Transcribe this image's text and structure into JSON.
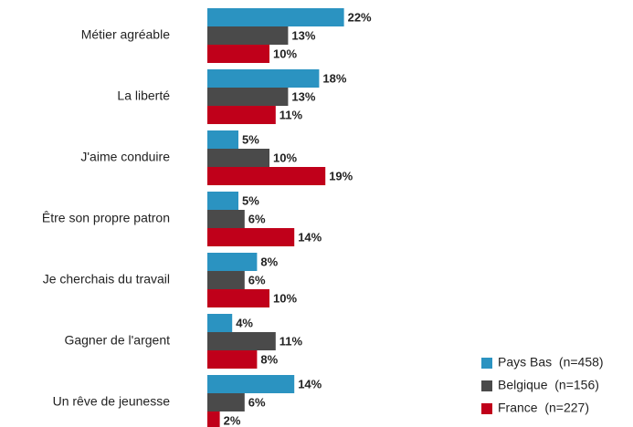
{
  "chart_data": {
    "type": "hbar",
    "categories": [
      "Métier agréable",
      "La liberté",
      "J'aime conduire",
      "Être son propre patron",
      "Je cherchais du travail",
      "Gagner de l'argent",
      "Un rêve de jeunesse"
    ],
    "series": [
      {
        "name": "Pays Bas  (n=458)",
        "color": "#2b93c1",
        "values": [
          22,
          18,
          5,
          5,
          8,
          4,
          14
        ],
        "value_labels": [
          "22%",
          "18%",
          "5%",
          "5%",
          "8%",
          "4%",
          "14%"
        ]
      },
      {
        "name": "Belgique  (n=156)",
        "color": "#4a4a4a",
        "values": [
          13,
          13,
          10,
          6,
          6,
          11,
          6
        ],
        "value_labels": [
          "13%",
          "13%",
          "10%",
          "6%",
          "6%",
          "11%",
          "6%"
        ]
      },
      {
        "name": "France  (n=227)",
        "color": "#c0001a",
        "values": [
          10,
          11,
          19,
          14,
          10,
          8,
          2
        ],
        "value_labels": [
          "10%",
          "11%",
          "19%",
          "14%",
          "10%",
          "8%",
          "2%"
        ]
      }
    ],
    "legend": "lower right"
  }
}
